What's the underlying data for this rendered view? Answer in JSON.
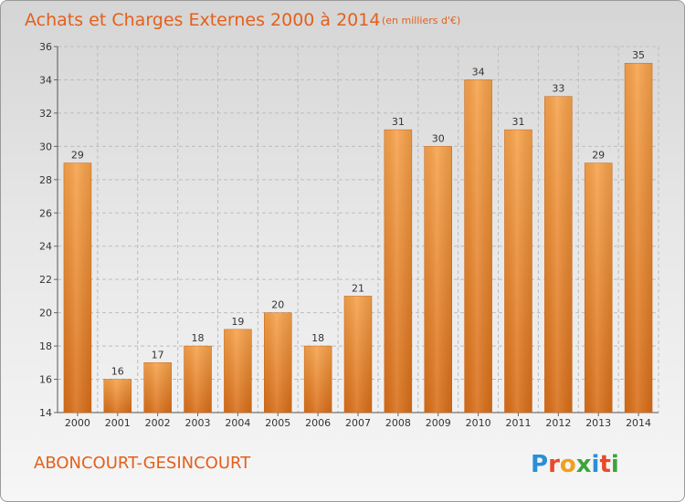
{
  "chart_data": {
    "type": "bar",
    "title": "Achats et Charges Externes 2000 à 2014",
    "subtitle": "(en milliers d'€)",
    "categories": [
      "2000",
      "2001",
      "2002",
      "2003",
      "2004",
      "2005",
      "2006",
      "2007",
      "2008",
      "2009",
      "2010",
      "2011",
      "2012",
      "2013",
      "2014"
    ],
    "values": [
      29,
      16,
      17,
      18,
      19,
      20,
      18,
      21,
      31,
      30,
      34,
      31,
      33,
      29,
      35
    ],
    "xlabel": "",
    "ylabel": "",
    "ylim": [
      14,
      36
    ],
    "yticks": [
      14,
      16,
      18,
      20,
      22,
      24,
      26,
      28,
      30,
      32,
      34,
      36
    ],
    "grid": true,
    "bar_color": "#f0892f",
    "legend": null
  },
  "footer": {
    "commune": "ABONCOURT-GESINCOURT",
    "logo": {
      "letters": [
        "P",
        "r",
        "o",
        "x",
        "i",
        "t",
        "i"
      ],
      "colors": [
        "#2c8fd6",
        "#e84a2a",
        "#f0a020",
        "#3aa63a",
        "#2c8fd6",
        "#e84a2a",
        "#3aa63a"
      ]
    }
  }
}
